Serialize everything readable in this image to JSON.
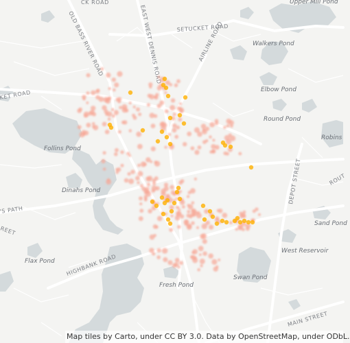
{
  "map": {
    "water_labels": {
      "upper_mill_pond": "Upper Mill Pond",
      "walkers_pond": "Walkers Pond",
      "elbow_pond": "Elbow Pond",
      "round_pond": "Round Pond",
      "robins_pond": "Robins",
      "follins_pond": "Follins Pond",
      "dinahs_pond": "Dinahs Pond",
      "sand_pond": "Sand Pond",
      "west_reservoir": "West Reservoir",
      "flax_pond": "Flax Pond",
      "swan_pond": "Swan Pond",
      "fresh_pond": "Fresh Pond"
    },
    "road_labels": {
      "setucket_road": "SETUCKET ROAD",
      "old_bass_river_road": "OLD BASS RIVER ROAD",
      "east_west_dennis_road": "EAST WEST DENNIS ROAD",
      "airline_road": "AIRLINE ROAD",
      "highbank_road": "HIGHBANK ROAD",
      "depot_street": "DEPOT STREET",
      "main_street": "MAIN STREET",
      "kings_path": "'S PATH",
      "ck_road": "CK ROAD",
      "ket_road": "KET ROAD",
      "reet": "REET",
      "rout": "ROUT"
    },
    "colors": {
      "land": "#f4f4f2",
      "water": "#d4dadc",
      "road": "#ffffff",
      "hotspot": "#ffb000",
      "point": "#f6a796"
    },
    "attribution": "Map tiles by Carto, under CC BY 3.0. Data by OpenStreetMap, under ODbL."
  }
}
